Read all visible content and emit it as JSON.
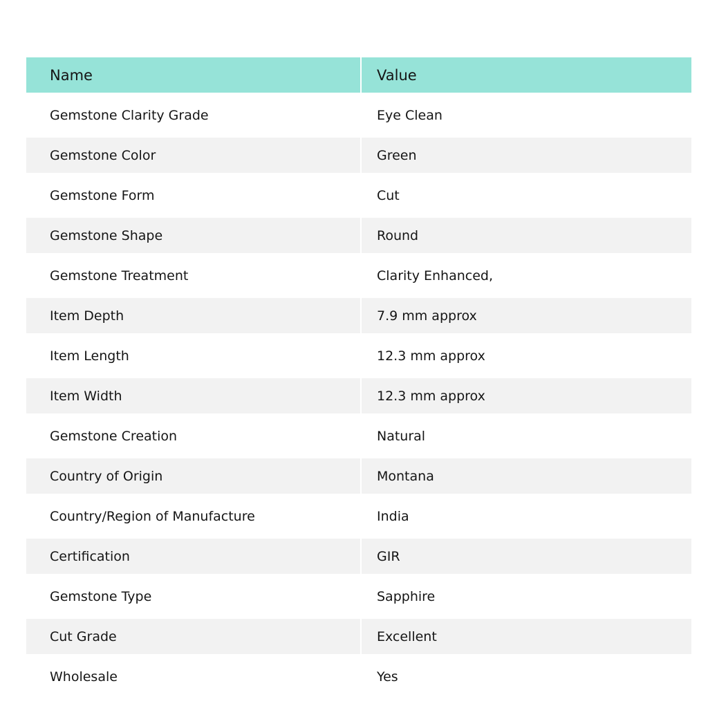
{
  "table": {
    "headers": [
      "Name",
      "Value"
    ],
    "header_color": "#96e3d8",
    "stripe_color": "#f2f2f2",
    "rows": [
      [
        "Gemstone Clarity Grade",
        "Eye Clean"
      ],
      [
        "Gemstone Color",
        "Green"
      ],
      [
        "Gemstone Form",
        "Cut"
      ],
      [
        "Gemstone Shape",
        "Round"
      ],
      [
        "Gemstone Treatment",
        "Clarity Enhanced,"
      ],
      [
        "Item Depth",
        "7.9 mm approx"
      ],
      [
        "Item Length",
        "12.3 mm approx"
      ],
      [
        "Item Width",
        "12.3 mm approx"
      ],
      [
        "Gemstone Creation",
        "Natural"
      ],
      [
        "Country of Origin",
        "Montana"
      ],
      [
        "Country/Region of Manufacture",
        "India"
      ],
      [
        "Certification",
        "GIR"
      ],
      [
        "Gemstone Type",
        "Sapphire"
      ],
      [
        "Cut Grade",
        "Excellent"
      ],
      [
        "Wholesale",
        "Yes"
      ]
    ]
  }
}
